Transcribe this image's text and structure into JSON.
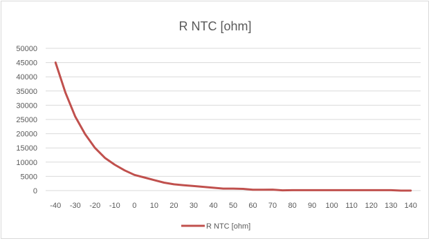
{
  "chart_data": {
    "type": "line",
    "title": "R NTC [ohm]",
    "xlabel": "",
    "ylabel": "",
    "grid": true,
    "legend": "bottom",
    "ylim": [
      0,
      50000
    ],
    "y_ticks": [
      0,
      5000,
      10000,
      15000,
      20000,
      25000,
      30000,
      35000,
      40000,
      45000,
      50000
    ],
    "x_ticks": [
      -40,
      -30,
      -20,
      -10,
      0,
      10,
      20,
      30,
      40,
      50,
      60,
      70,
      80,
      90,
      100,
      110,
      120,
      130,
      140
    ],
    "series": [
      {
        "name": "R NTC [ohm]",
        "color": "#c0504d",
        "x": [
          -40,
          -35,
          -30,
          -25,
          -20,
          -15,
          -10,
          -5,
          0,
          5,
          10,
          15,
          20,
          25,
          30,
          35,
          40,
          45,
          50,
          55,
          60,
          65,
          70,
          75,
          80,
          85,
          90,
          95,
          100,
          105,
          110,
          115,
          120,
          125,
          130,
          135,
          140
        ],
        "values": [
          45000,
          34500,
          26000,
          19800,
          15000,
          11500,
          9100,
          7100,
          5500,
          4600,
          3700,
          2800,
          2200,
          1900,
          1600,
          1300,
          1000,
          700,
          700,
          600,
          300,
          300,
          350,
          100,
          150,
          150,
          150,
          150,
          150,
          150,
          150,
          150,
          150,
          150,
          150,
          0,
          0
        ]
      }
    ]
  }
}
